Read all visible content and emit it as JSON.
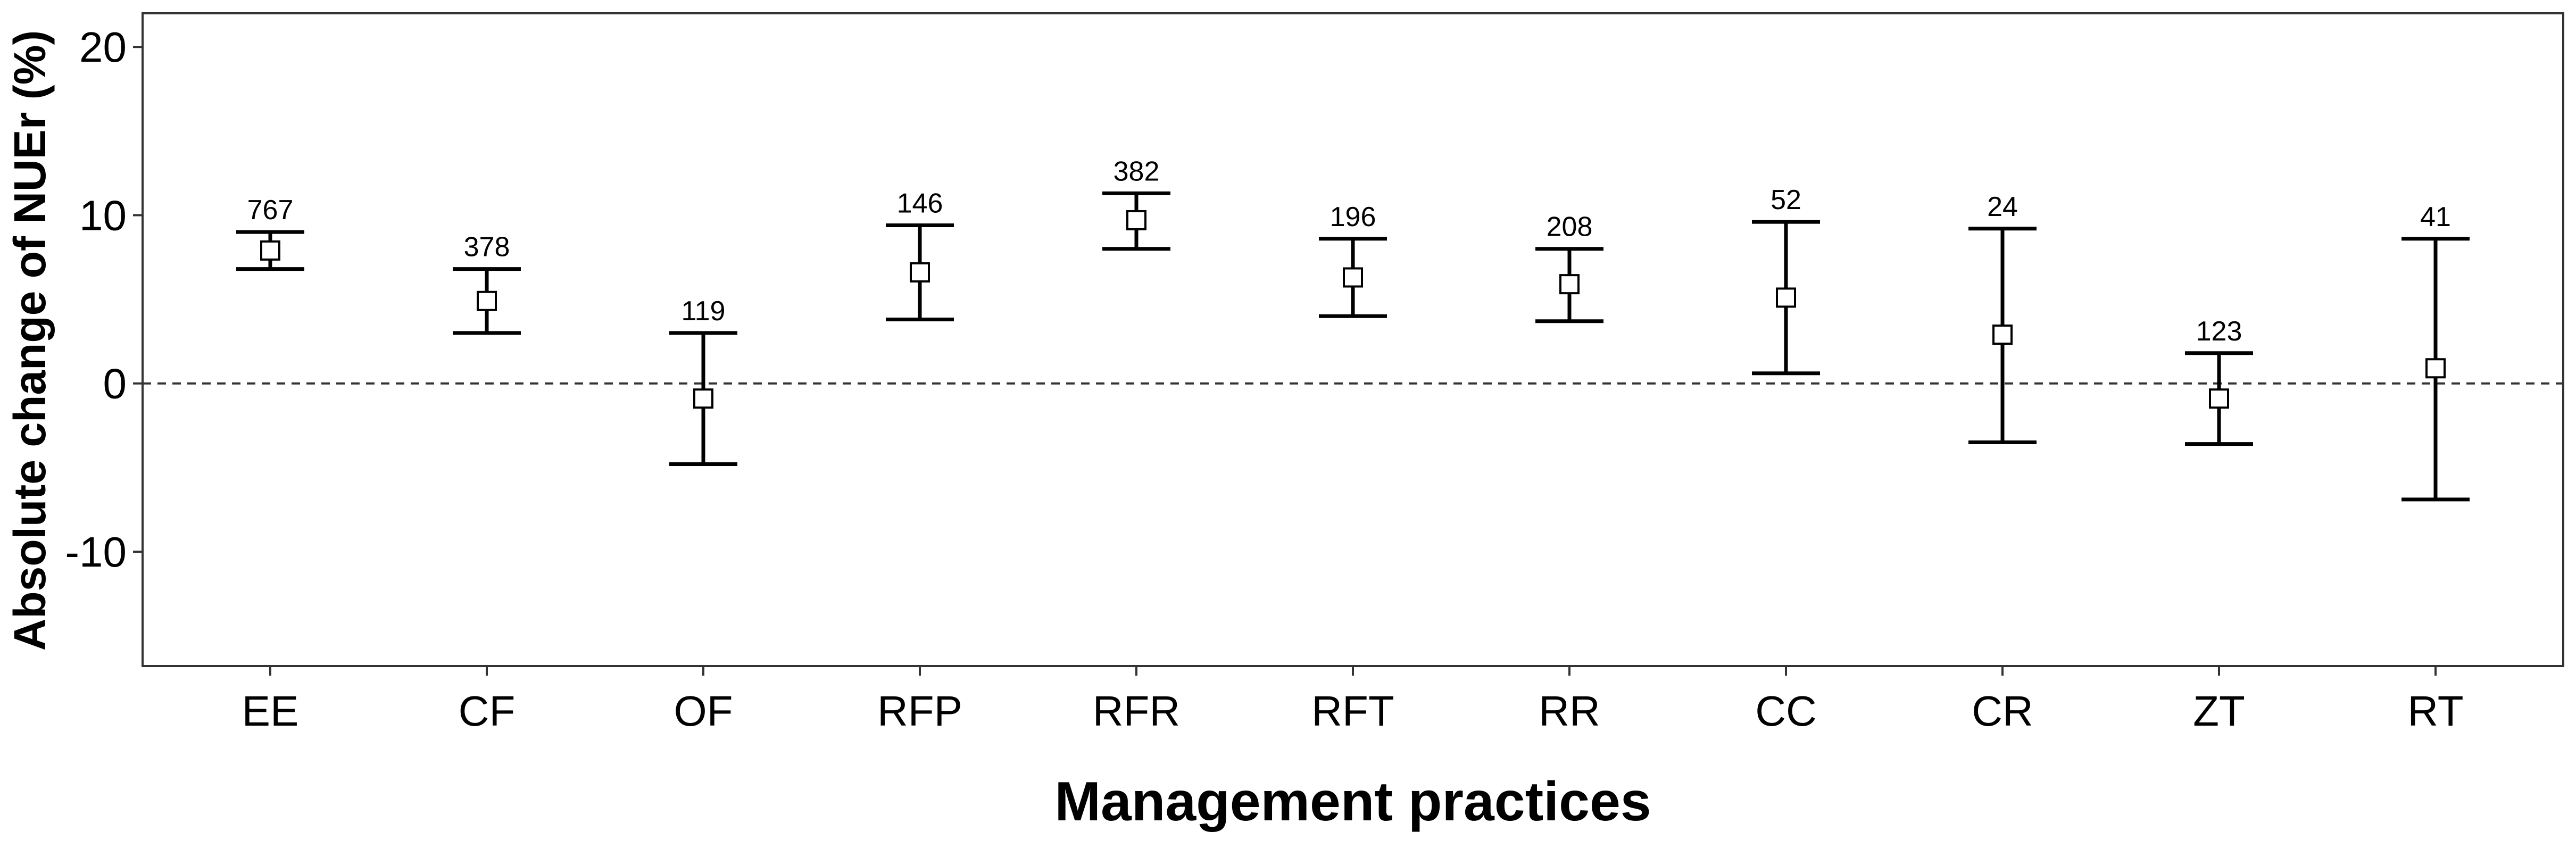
{
  "chart_data": {
    "type": "scatter",
    "xlabel": "Management practices",
    "ylabel": "Absolute change of NUEr (%)",
    "categories": [
      "EE",
      "CF",
      "OF",
      "RFP",
      "RFR",
      "RFT",
      "RR",
      "CC",
      "CR",
      "ZT",
      "RT"
    ],
    "mean": [
      7.9,
      4.9,
      -0.9,
      6.6,
      9.7,
      6.3,
      5.9,
      5.1,
      2.9,
      -0.9,
      0.9
    ],
    "lower": [
      6.8,
      3.0,
      -4.8,
      3.8,
      8.0,
      4.0,
      3.7,
      0.6,
      -3.5,
      -3.6,
      -6.9
    ],
    "upper": [
      9.0,
      6.8,
      3.0,
      9.4,
      11.3,
      8.6,
      8.0,
      9.6,
      9.2,
      1.8,
      8.6
    ],
    "n": [
      "767",
      "378",
      "119",
      "146",
      "382",
      "196",
      "208",
      "52",
      "24",
      "123",
      "41"
    ],
    "y_ticks": [
      "-10",
      "0",
      "10",
      "20"
    ],
    "ylim": [
      -16.8,
      22
    ],
    "reference_line": 0,
    "grid": false,
    "marker": "open-square",
    "colors": {
      "line": "#000000",
      "frame": "#333333"
    }
  }
}
